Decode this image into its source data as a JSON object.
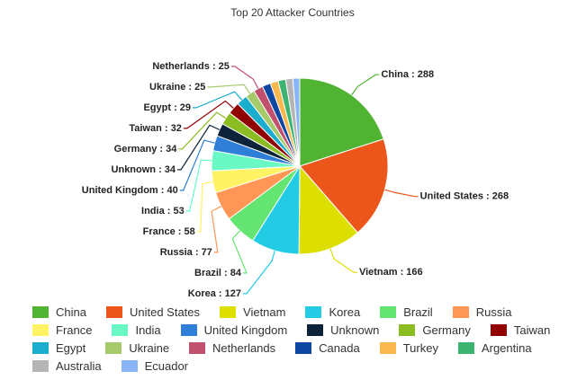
{
  "chart_data": {
    "type": "pie",
    "title": "Top 20 Attacker Countries",
    "categories": [
      "China",
      "United States",
      "Vietnam",
      "Korea",
      "Brazil",
      "Russia",
      "France",
      "India",
      "United Kingdom",
      "Unknown",
      "Germany",
      "Taiwan",
      "Egypt",
      "Ukraine",
      "Netherlands",
      "Canada",
      "Turkey",
      "Argentina",
      "Australia",
      "Ecuador"
    ],
    "values": [
      288,
      268,
      166,
      127,
      84,
      77,
      58,
      53,
      40,
      34,
      34,
      32,
      29,
      25,
      25,
      22,
      21,
      20,
      19,
      18
    ],
    "value_labels": [
      "China : 288",
      "United States : 268",
      "Vietnam : 166",
      "Korea : 127",
      "Brazil : 84",
      "Russia : 77",
      "France : 58",
      "India : 53",
      "United Kingdom : 40",
      "Unknown : 34",
      "Germany : 34",
      "Taiwan : 32",
      "Egypt : 29",
      "Ukraine : 25",
      "Netherlands : 25",
      null,
      null,
      null,
      null,
      null
    ],
    "colors": [
      "#50b432",
      "#ed561b",
      "#dddf00",
      "#24cbe5",
      "#64e572",
      "#ff9655",
      "#fff263",
      "#6af9c4",
      "#2f7ed8",
      "#0d233a",
      "#8bbc21",
      "#910000",
      "#1aadce",
      "#a6c96a",
      "#c0506e",
      "#0d47a1",
      "#f9b84f",
      "#3cb371",
      "#b5b5b5",
      "#8ab4f8"
    ]
  }
}
